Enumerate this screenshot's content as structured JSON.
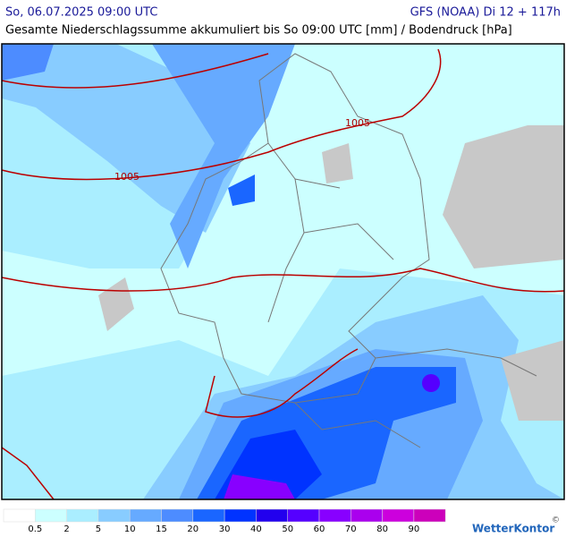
{
  "header": {
    "date": "So, 06.07.2025 09:00 UTC",
    "model": "GFS (NOAA) Di 12 + 117h",
    "subtitle": "Gesamte Niederschlagssumme akkumuliert bis So 09:00 UTC [mm] / Bodendruck [hPa]"
  },
  "map": {
    "isobar_labels": [
      "1005",
      "1005"
    ]
  },
  "legend": {
    "colors": [
      "#ffffff",
      "#ccffff",
      "#aaeeff",
      "#88ccff",
      "#66aaff",
      "#4d8cff",
      "#1a66ff",
      "#0033ff",
      "#2200ee",
      "#5500ff",
      "#8800ff",
      "#aa00ee",
      "#cc00dd",
      "#cc00bb"
    ],
    "labels": [
      0.5,
      2,
      5,
      10,
      15,
      20,
      30,
      40,
      50,
      60,
      70,
      80,
      90
    ]
  },
  "footer": {
    "brand": "WetterKontor",
    "copyright": "©"
  }
}
